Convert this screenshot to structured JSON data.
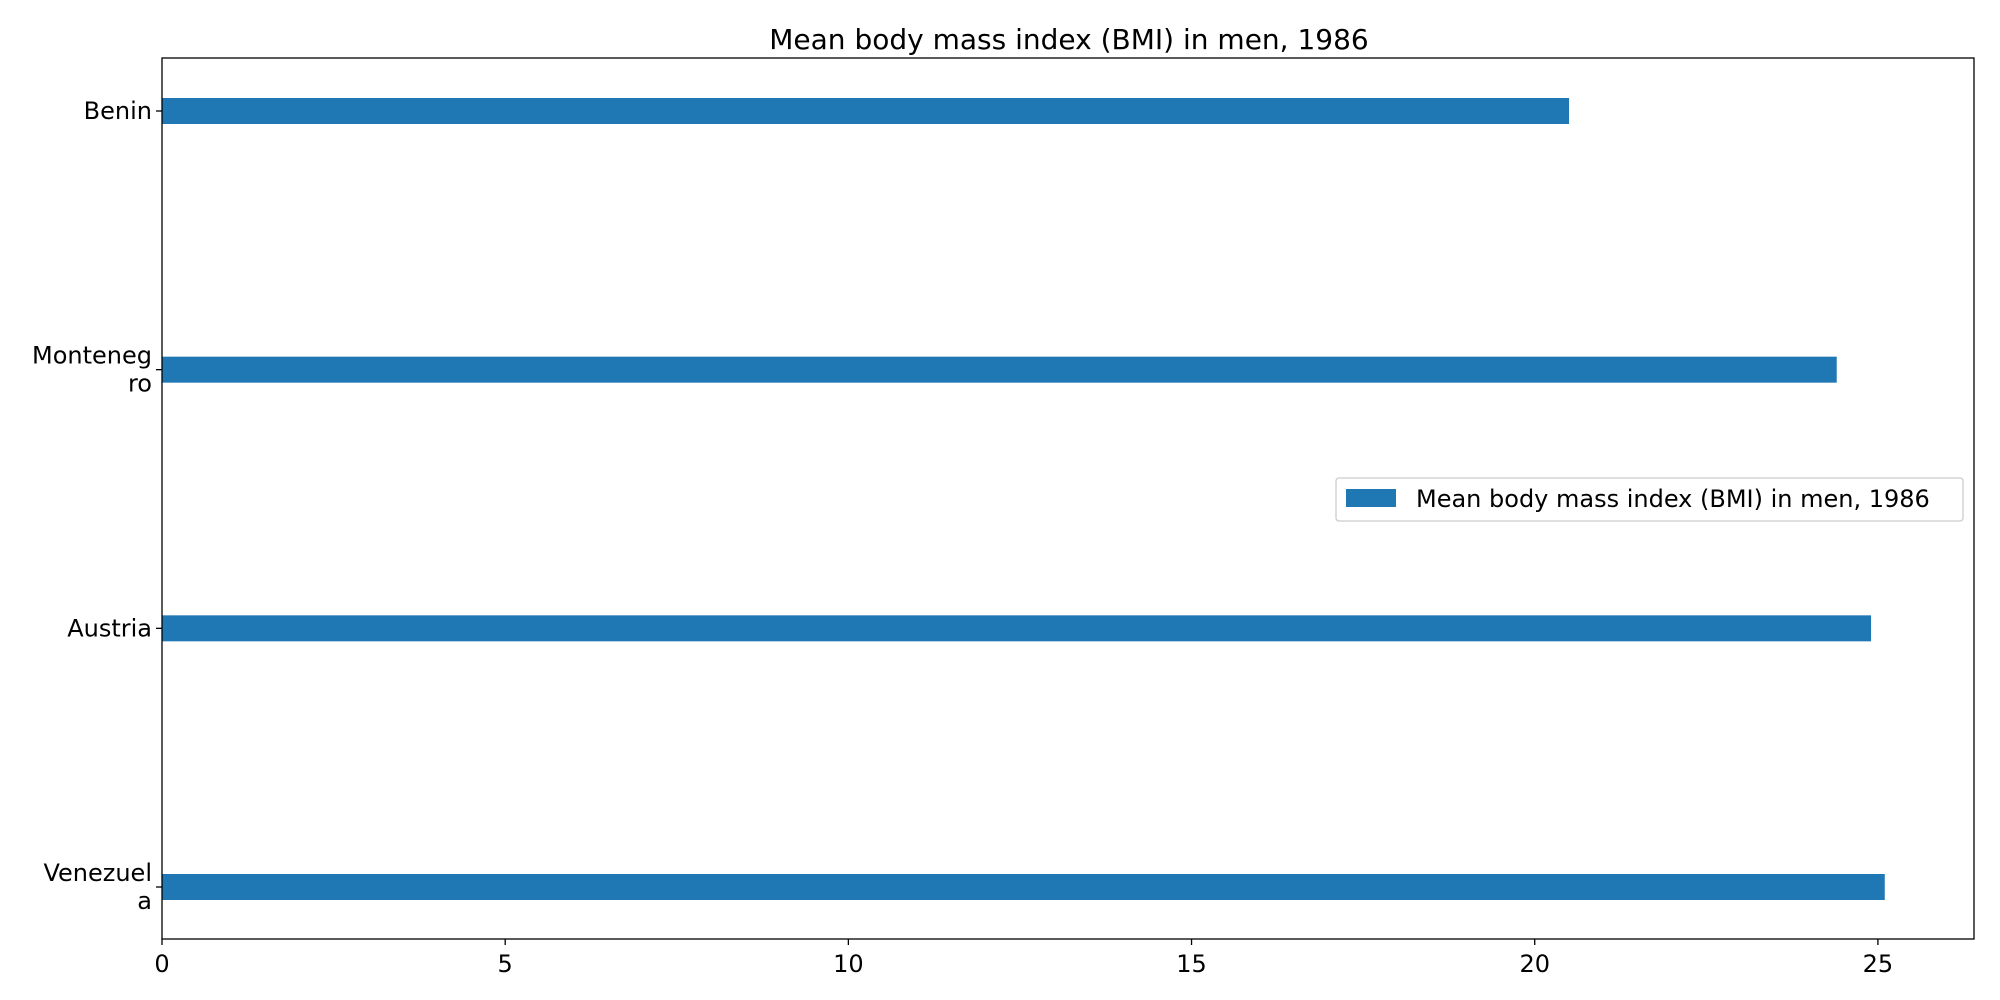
{
  "chart_data": {
    "type": "bar",
    "orientation": "horizontal",
    "title": "Mean body mass index (BMI) in men, 1986",
    "xlabel": "",
    "ylabel": "",
    "categories": [
      [
        "Benin"
      ],
      [
        "Monteneg",
        "ro"
      ],
      [
        "Austria"
      ],
      [
        "Venezuel",
        "a"
      ]
    ],
    "series": [
      {
        "name": "Mean body mass index (BMI) in men, 1986",
        "color": "#1f77b4",
        "values": [
          20.5,
          24.4,
          24.9,
          25.1
        ]
      }
    ],
    "xlim": [
      0,
      26.4
    ],
    "xticks": [
      0,
      5,
      10,
      15,
      20,
      25
    ],
    "grid": false,
    "legend_position": "center-right"
  }
}
